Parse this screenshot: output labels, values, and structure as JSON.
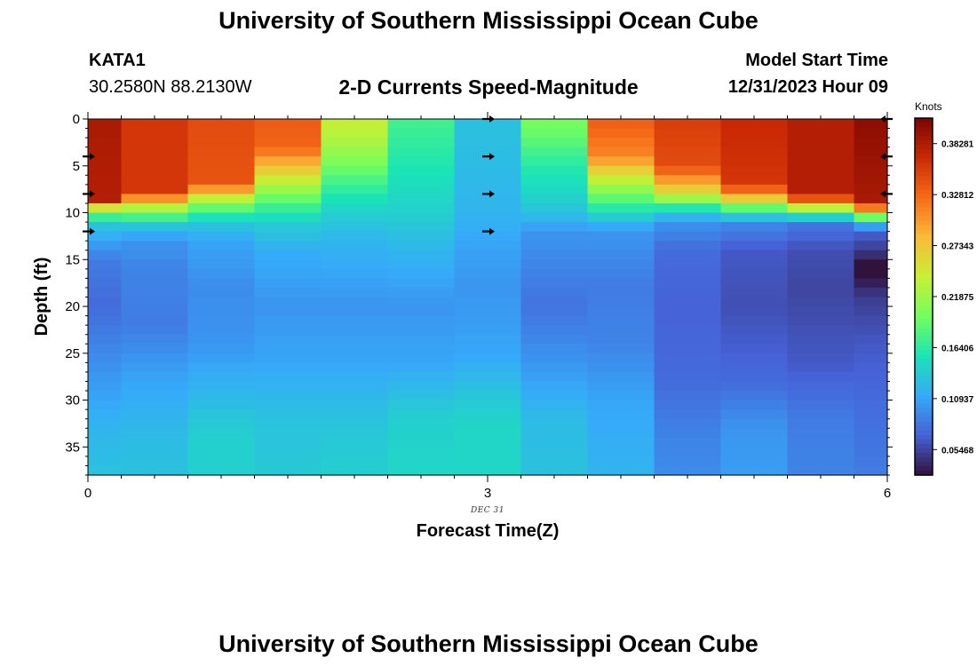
{
  "header": {
    "title": "University of Southern Mississippi Ocean Cube",
    "station": "KATA1",
    "coords": "30.2580N  88.2130W",
    "subtitle": "2-D Currents Speed-Magnitude",
    "model_start_label": "Model Start Time",
    "model_start_value": "12/31/2023 Hour 09"
  },
  "footer": {
    "title": "University of Southern Mississippi Ocean Cube"
  },
  "chart_data": {
    "type": "heatmap",
    "xlabel": "Forecast Time(Z)",
    "ylabel": "Depth (ft)",
    "date_label": "DEC 31",
    "x_ticks": [
      "0",
      "3",
      "6"
    ],
    "x_range": [
      0,
      6
    ],
    "y_ticks": [
      "0",
      "5",
      "10",
      "15",
      "20",
      "25",
      "30",
      "35"
    ],
    "y_range": [
      0,
      38
    ],
    "y_inverted": true,
    "colorbar": {
      "label": "Knots",
      "min": 0.02734,
      "max": 0.41015,
      "tick_values": [
        0.05468,
        0.10937,
        0.16406,
        0.21875,
        0.27343,
        0.32812,
        0.38281
      ],
      "tick_labels": [
        "0.05468",
        "0.10937",
        "0.16406",
        "0.21875",
        "0.27343",
        "0.32812",
        "0.38281"
      ],
      "colors": [
        "#30123b",
        "#4662d7",
        "#36aaf9",
        "#1ae4b6",
        "#72fe5e",
        "#c8ef34",
        "#faba39",
        "#f66b19",
        "#cb2a04",
        "#7a0403"
      ]
    },
    "x_centers": [
      0.0,
      0.5,
      1.0,
      1.5,
      2.0,
      2.5,
      3.0,
      3.5,
      4.0,
      4.5,
      5.0,
      5.5,
      6.0
    ],
    "depth_profiles": [
      {
        "x": 0.0,
        "keys": [
          [
            0,
            0.385
          ],
          [
            9,
            0.38
          ],
          [
            9.5,
            0.25
          ],
          [
            10.5,
            0.17
          ],
          [
            11.5,
            0.13
          ],
          [
            12.5,
            0.115
          ],
          [
            15,
            0.085
          ],
          [
            20,
            0.075
          ],
          [
            27,
            0.1
          ],
          [
            33,
            0.12
          ],
          [
            38,
            0.13
          ]
        ]
      },
      {
        "x": 0.5,
        "keys": [
          [
            0,
            0.36
          ],
          [
            8,
            0.36
          ],
          [
            8.8,
            0.27
          ],
          [
            10,
            0.2
          ],
          [
            11.5,
            0.13
          ],
          [
            13,
            0.1
          ],
          [
            16,
            0.09
          ],
          [
            22,
            0.085
          ],
          [
            28,
            0.11
          ],
          [
            34,
            0.125
          ],
          [
            38,
            0.13
          ]
        ]
      },
      {
        "x": 1.0,
        "keys": [
          [
            0,
            0.345
          ],
          [
            7,
            0.34
          ],
          [
            8,
            0.26
          ],
          [
            9.5,
            0.19
          ],
          [
            11,
            0.135
          ],
          [
            13,
            0.11
          ],
          [
            18,
            0.095
          ],
          [
            24,
            0.1
          ],
          [
            30,
            0.125
          ],
          [
            34,
            0.14
          ],
          [
            38,
            0.14
          ]
        ]
      },
      {
        "x": 1.5,
        "keys": [
          [
            0,
            0.335
          ],
          [
            3,
            0.33
          ],
          [
            5,
            0.28
          ],
          [
            7,
            0.23
          ],
          [
            9,
            0.18
          ],
          [
            11,
            0.14
          ],
          [
            14,
            0.115
          ],
          [
            20,
            0.1
          ],
          [
            26,
            0.11
          ],
          [
            32,
            0.13
          ],
          [
            38,
            0.135
          ]
        ]
      },
      {
        "x": 2.0,
        "keys": [
          [
            0,
            0.24
          ],
          [
            2,
            0.23
          ],
          [
            4,
            0.21
          ],
          [
            6,
            0.185
          ],
          [
            8,
            0.16
          ],
          [
            10,
            0.14
          ],
          [
            13,
            0.12
          ],
          [
            20,
            0.1
          ],
          [
            26,
            0.11
          ],
          [
            32,
            0.13
          ],
          [
            38,
            0.14
          ]
        ]
      },
      {
        "x": 2.5,
        "keys": [
          [
            0,
            0.175
          ],
          [
            3,
            0.165
          ],
          [
            7,
            0.15
          ],
          [
            10,
            0.14
          ],
          [
            13,
            0.125
          ],
          [
            20,
            0.1
          ],
          [
            26,
            0.11
          ],
          [
            32,
            0.14
          ],
          [
            38,
            0.145
          ]
        ]
      },
      {
        "x": 3.0,
        "keys": [
          [
            0,
            0.13
          ],
          [
            10,
            0.12
          ],
          [
            13,
            0.11
          ],
          [
            18,
            0.1
          ],
          [
            25,
            0.11
          ],
          [
            30,
            0.135
          ],
          [
            33,
            0.145
          ],
          [
            38,
            0.145
          ]
        ]
      },
      {
        "x": 3.5,
        "keys": [
          [
            0,
            0.2
          ],
          [
            2,
            0.19
          ],
          [
            4,
            0.17
          ],
          [
            6,
            0.155
          ],
          [
            8,
            0.145
          ],
          [
            10,
            0.13
          ],
          [
            12,
            0.1
          ],
          [
            20,
            0.08
          ],
          [
            26,
            0.1
          ],
          [
            32,
            0.125
          ],
          [
            38,
            0.13
          ]
        ]
      },
      {
        "x": 4.0,
        "keys": [
          [
            0,
            0.335
          ],
          [
            4,
            0.31
          ],
          [
            6,
            0.25
          ],
          [
            8,
            0.2
          ],
          [
            10,
            0.15
          ],
          [
            12,
            0.1
          ],
          [
            18,
            0.085
          ],
          [
            24,
            0.09
          ],
          [
            30,
            0.11
          ],
          [
            38,
            0.12
          ]
        ]
      },
      {
        "x": 4.5,
        "keys": [
          [
            0,
            0.355
          ],
          [
            5,
            0.345
          ],
          [
            6.5,
            0.3
          ],
          [
            8,
            0.25
          ],
          [
            9.5,
            0.16
          ],
          [
            11,
            0.1
          ],
          [
            14,
            0.075
          ],
          [
            20,
            0.07
          ],
          [
            28,
            0.075
          ],
          [
            34,
            0.09
          ],
          [
            38,
            0.095
          ]
        ]
      },
      {
        "x": 5.0,
        "keys": [
          [
            0,
            0.37
          ],
          [
            7,
            0.36
          ],
          [
            8.5,
            0.27
          ],
          [
            10,
            0.15
          ],
          [
            11.5,
            0.09
          ],
          [
            14,
            0.065
          ],
          [
            20,
            0.06
          ],
          [
            28,
            0.075
          ],
          [
            33,
            0.1
          ],
          [
            38,
            0.105
          ]
        ]
      },
      {
        "x": 5.5,
        "keys": [
          [
            0,
            0.38
          ],
          [
            8,
            0.38
          ],
          [
            9,
            0.3
          ],
          [
            10,
            0.17
          ],
          [
            11.5,
            0.08
          ],
          [
            14,
            0.06
          ],
          [
            18,
            0.055
          ],
          [
            26,
            0.065
          ],
          [
            32,
            0.085
          ],
          [
            38,
            0.09
          ]
        ]
      },
      {
        "x": 6.0,
        "keys": [
          [
            0,
            0.4
          ],
          [
            9,
            0.385
          ],
          [
            10,
            0.25
          ],
          [
            11,
            0.14
          ],
          [
            12,
            0.07
          ],
          [
            14,
            0.05
          ],
          [
            15,
            0.035
          ],
          [
            16,
            0.0
          ],
          [
            17,
            0.03
          ],
          [
            19,
            0.05
          ],
          [
            24,
            0.065
          ],
          [
            30,
            0.075
          ],
          [
            38,
            0.085
          ]
        ]
      }
    ],
    "arrows": [
      {
        "x": 0,
        "depth": 4,
        "dir": "right"
      },
      {
        "x": 0,
        "depth": 8,
        "dir": "right"
      },
      {
        "x": 0,
        "depth": 12,
        "dir": "right"
      },
      {
        "x": 3,
        "depth": 0,
        "dir": "right"
      },
      {
        "x": 3,
        "depth": 4,
        "dir": "right"
      },
      {
        "x": 3,
        "depth": 8,
        "dir": "right"
      },
      {
        "x": 3,
        "depth": 12,
        "dir": "right"
      },
      {
        "x": 6,
        "depth": 0,
        "dir": "left"
      },
      {
        "x": 6,
        "depth": 4,
        "dir": "left"
      },
      {
        "x": 6,
        "depth": 8,
        "dir": "left"
      }
    ]
  }
}
